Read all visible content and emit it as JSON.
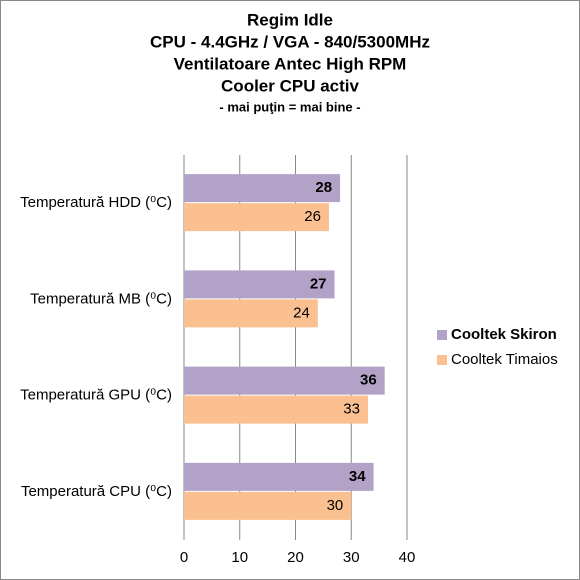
{
  "chart_data": {
    "type": "bar",
    "orientation": "horizontal",
    "title": [
      "Regim Idle",
      "CPU - 4.4GHz / VGA - 840/5300MHz",
      "Ventilatoare Antec High RPM",
      "Cooler CPU activ"
    ],
    "subtitle": "- mai puţin = mai bine -",
    "categories": [
      "Temperatură  HDD (⁰C)",
      "Temperatură  MB (⁰C)",
      "Temperatură  GPU (⁰C)",
      "Temperatură  CPU (⁰C)"
    ],
    "series": [
      {
        "name": "Cooltek Skiron",
        "color": "#b3a2c7",
        "values": [
          28,
          27,
          36,
          34
        ]
      },
      {
        "name": "Cooltek Timaios",
        "color": "#fac090",
        "values": [
          26,
          24,
          33,
          30
        ]
      }
    ],
    "xlim": [
      0,
      40
    ],
    "xticks": [
      0,
      10,
      20,
      30,
      40
    ],
    "grid": true,
    "legend": "right"
  }
}
